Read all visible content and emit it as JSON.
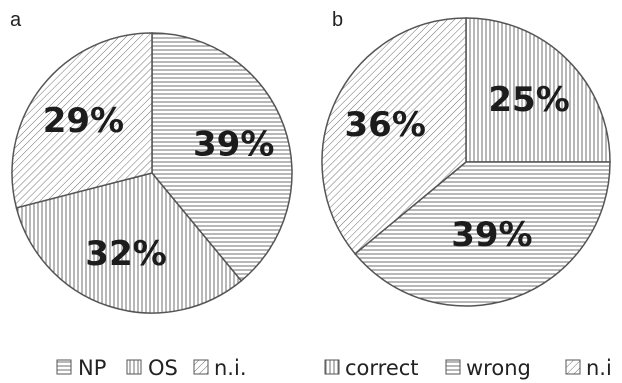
{
  "chart_data": [
    {
      "type": "pie",
      "panel_label": "a",
      "slices": [
        {
          "label": "NP",
          "value": 39,
          "value_label": "39%",
          "pattern": "hatch-horizontal"
        },
        {
          "label": "OS",
          "value": 32,
          "value_label": "32%",
          "pattern": "hatch-vertical"
        },
        {
          "label": "n.i.",
          "value": 29,
          "value_label": "29%",
          "pattern": "hatch-diagonal"
        }
      ],
      "legend": [
        "NP",
        "OS",
        "n.i."
      ],
      "legend_position": "bottom"
    },
    {
      "type": "pie",
      "panel_label": "b",
      "slices": [
        {
          "label": "correct",
          "value": 25,
          "value_label": "25%",
          "pattern": "hatch-vertical"
        },
        {
          "label": "wrong",
          "value": 39,
          "value_label": "39%",
          "pattern": "hatch-horizontal"
        },
        {
          "label": "n.i",
          "value": 36,
          "value_label": "36%",
          "pattern": "hatch-diagonal"
        }
      ],
      "legend": [
        "correct",
        "wrong",
        "n.i"
      ],
      "legend_position": "bottom"
    }
  ]
}
